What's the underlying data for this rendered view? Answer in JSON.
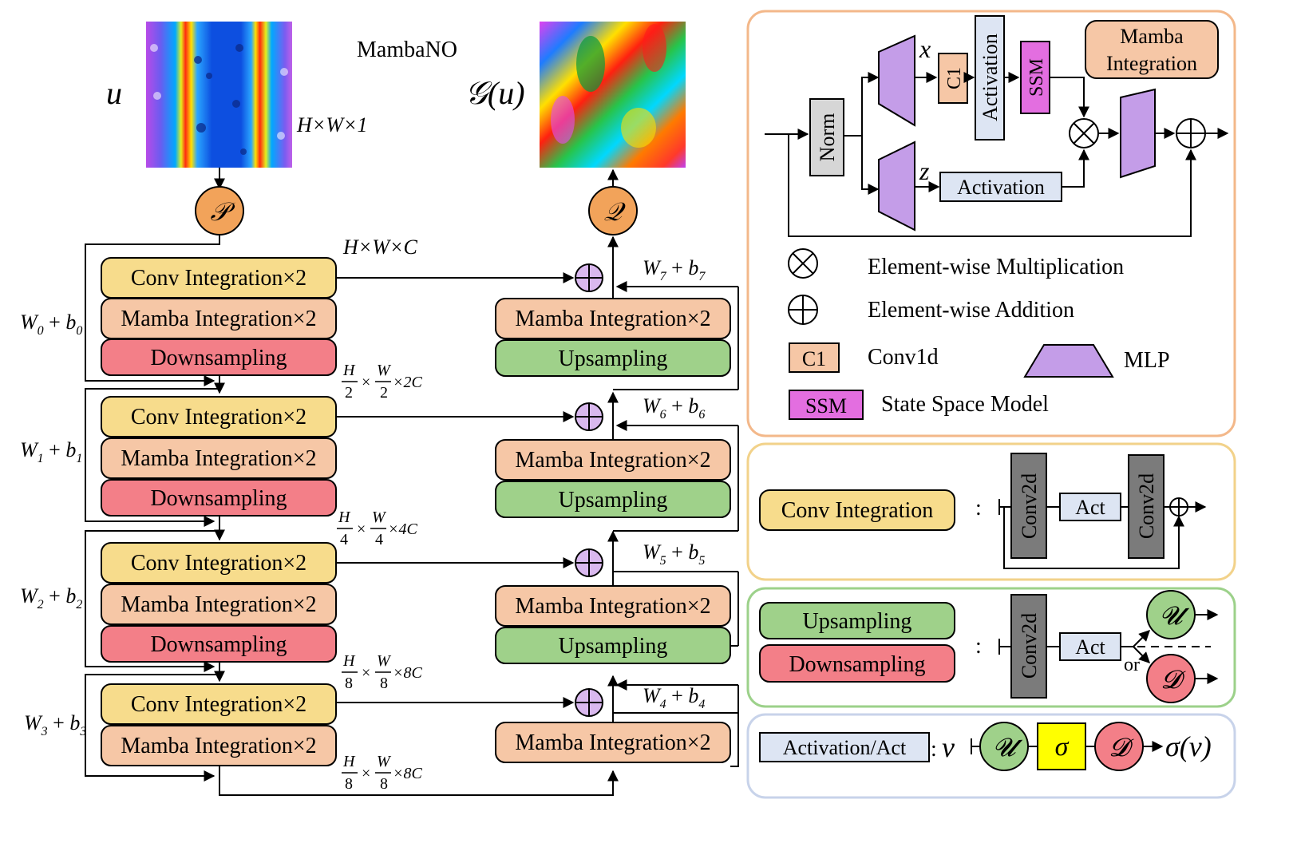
{
  "title": "MambaNO",
  "input": {
    "symbol": "u",
    "dims": "H×W×1",
    "lift_op": "𝒫"
  },
  "output": {
    "symbol": "𝒢(u)",
    "proj_op": "𝒬"
  },
  "top_dims": "H×W×C",
  "encoder": {
    "conv": "Conv Integration×2",
    "mamba": "Mamba Integration×2",
    "down": "Downsampling",
    "skip": [
      {
        "W": "W",
        "sub": "0",
        "b": "b",
        "bsub": "0"
      },
      {
        "W": "W",
        "sub": "1",
        "b": "b",
        "bsub": "1"
      },
      {
        "W": "W",
        "sub": "2",
        "b": "b",
        "bsub": "2"
      },
      {
        "W": "W",
        "sub": "3",
        "b": "b",
        "bsub": "3"
      }
    ],
    "dims": [
      {
        "h": "H",
        "hd": "2",
        "w": "W",
        "wd": "2",
        "c": "×2C"
      },
      {
        "h": "H",
        "hd": "4",
        "w": "W",
        "wd": "4",
        "c": "×4C"
      },
      {
        "h": "H",
        "hd": "8",
        "w": "W",
        "wd": "8",
        "c": "×8C"
      },
      {
        "h": "H",
        "hd": "8",
        "w": "W",
        "wd": "8",
        "c": "×8C"
      }
    ]
  },
  "decoder": {
    "mamba": "Mamba Integration×2",
    "up": "Upsampling",
    "skip": [
      {
        "sub": "7"
      },
      {
        "sub": "6"
      },
      {
        "sub": "5"
      },
      {
        "sub": "4"
      }
    ]
  },
  "mamba_panel": {
    "title": "Mamba Integration",
    "norm": "Norm",
    "x": "x",
    "z": "z",
    "c1": "C1",
    "activation": "Activation",
    "ssm": "SSM"
  },
  "legend": {
    "mult": "Element-wise Multiplication",
    "add": "Element-wise Addition",
    "c1_box": "C1",
    "c1_text": "Conv1d",
    "mlp_text": "MLP",
    "ssm_box": "SSM",
    "ssm_text": "State Space Model"
  },
  "conv_panel": {
    "label": "Conv Integration",
    "colon": ":",
    "conv": "Conv2d",
    "act": "Act"
  },
  "updown_panel": {
    "up": "Upsampling",
    "down": "Downsampling",
    "colon": ":",
    "conv": "Conv2d",
    "act": "Act",
    "or": "or",
    "U": "𝓤",
    "D": "𝓓"
  },
  "act_panel": {
    "label": "Activation/Act",
    "colon": ":",
    "v": "v",
    "U": "𝓤",
    "sigma": "σ",
    "D": "𝓓",
    "result": "σ(v)"
  },
  "colors": {
    "conv": "#f7dc8c",
    "mamba": "#f6c7a6",
    "down": "#f37f88",
    "up": "#9fd18a",
    "lift": "#f2a35a",
    "add": "#d9b8ee",
    "mlp": "#c49de8",
    "ssm": "#e36ee0",
    "act_box": "#dde5f3",
    "norm": "#d6d6d6",
    "conv2d": "#7b7b7b",
    "sigma": "#ffff00"
  }
}
